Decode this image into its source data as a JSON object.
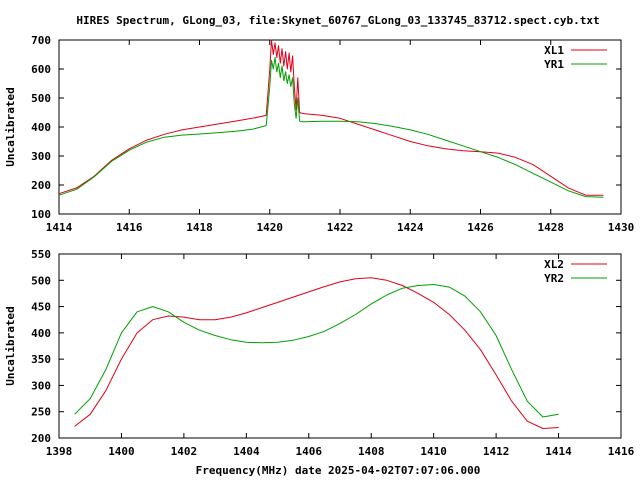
{
  "chart_data": [
    {
      "type": "line",
      "title": "HIRES Spectrum, GLong_03, file:Skynet_60767_GLong_03_133745_83712.spect.cyb.txt",
      "xlabel": "",
      "ylabel": "Uncalibrated",
      "xlim": [
        1414,
        1430
      ],
      "ylim": [
        100,
        700
      ],
      "xticks": [
        "1414",
        "1416",
        "1418",
        "1420",
        "1422",
        "1424",
        "1426",
        "1428",
        "1430"
      ],
      "yticks": [
        "100",
        "200",
        "300",
        "400",
        "500",
        "600",
        "700"
      ],
      "legend_position": "top-right",
      "grid": false,
      "series": [
        {
          "name": "XL1",
          "color": "#e0001b",
          "x": [
            1414.0,
            1414.5,
            1415.0,
            1415.5,
            1416.0,
            1416.5,
            1417.0,
            1417.5,
            1418.0,
            1418.5,
            1419.0,
            1419.5,
            1419.9,
            1420.0,
            1420.05,
            1420.1,
            1420.15,
            1420.2,
            1420.25,
            1420.3,
            1420.35,
            1420.4,
            1420.45,
            1420.5,
            1420.55,
            1420.6,
            1420.65,
            1420.7,
            1420.75,
            1420.8,
            1420.85,
            1420.9,
            1421.0,
            1421.5,
            1422.0,
            1422.5,
            1423.0,
            1423.5,
            1424.0,
            1424.5,
            1425.0,
            1425.5,
            1426.0,
            1426.5,
            1427.0,
            1427.5,
            1428.0,
            1428.5,
            1429.0,
            1429.5
          ],
          "y": [
            170,
            190,
            230,
            285,
            325,
            355,
            375,
            390,
            400,
            410,
            420,
            430,
            440,
            600,
            700,
            650,
            690,
            640,
            680,
            620,
            670,
            610,
            660,
            600,
            655,
            590,
            645,
            540,
            460,
            570,
            450,
            448,
            446,
            440,
            430,
            410,
            390,
            370,
            350,
            335,
            325,
            318,
            315,
            310,
            295,
            270,
            230,
            190,
            165,
            165
          ]
        },
        {
          "name": "YR1",
          "color": "#00a000",
          "x": [
            1414.0,
            1414.5,
            1415.0,
            1415.5,
            1416.0,
            1416.5,
            1417.0,
            1417.5,
            1418.0,
            1418.5,
            1419.0,
            1419.5,
            1419.9,
            1420.0,
            1420.05,
            1420.1,
            1420.15,
            1420.2,
            1420.25,
            1420.3,
            1420.35,
            1420.4,
            1420.45,
            1420.5,
            1420.55,
            1420.6,
            1420.65,
            1420.7,
            1420.75,
            1420.8,
            1420.85,
            1420.9,
            1421.0,
            1421.5,
            1422.0,
            1422.5,
            1423.0,
            1423.5,
            1424.0,
            1424.5,
            1425.0,
            1425.5,
            1426.0,
            1426.5,
            1427.0,
            1427.5,
            1428.0,
            1428.5,
            1429.0,
            1429.5
          ],
          "y": [
            165,
            185,
            228,
            282,
            320,
            348,
            365,
            372,
            376,
            380,
            385,
            392,
            405,
            540,
            630,
            600,
            640,
            590,
            620,
            570,
            610,
            560,
            590,
            550,
            580,
            540,
            570,
            480,
            430,
            500,
            420,
            418,
            418,
            420,
            420,
            418,
            412,
            402,
            390,
            375,
            355,
            335,
            315,
            295,
            270,
            240,
            210,
            180,
            160,
            158
          ]
        }
      ]
    },
    {
      "type": "line",
      "title": "",
      "xlabel": "Frequency(MHz) date 2025-04-02T07:07:06.000",
      "ylabel": "Uncalibrated",
      "xlim": [
        1398,
        1416
      ],
      "ylim": [
        200,
        550
      ],
      "xticks": [
        "1398",
        "1400",
        "1402",
        "1404",
        "1406",
        "1408",
        "1410",
        "1412",
        "1414",
        "1416"
      ],
      "yticks": [
        "200",
        "250",
        "300",
        "350",
        "400",
        "450",
        "500",
        "550"
      ],
      "legend_position": "top-right",
      "grid": false,
      "series": [
        {
          "name": "XL2",
          "color": "#e0001b",
          "x": [
            1398.5,
            1399.0,
            1399.5,
            1400.0,
            1400.5,
            1401.0,
            1401.5,
            1402.0,
            1402.5,
            1403.0,
            1403.5,
            1404.0,
            1404.5,
            1405.0,
            1405.5,
            1406.0,
            1406.5,
            1407.0,
            1407.5,
            1408.0,
            1408.5,
            1409.0,
            1409.5,
            1410.0,
            1410.5,
            1411.0,
            1411.5,
            1412.0,
            1412.5,
            1413.0,
            1413.5,
            1414.0
          ],
          "y": [
            222,
            245,
            290,
            350,
            400,
            425,
            432,
            430,
            425,
            425,
            430,
            438,
            448,
            458,
            468,
            478,
            488,
            497,
            503,
            505,
            500,
            490,
            475,
            458,
            435,
            405,
            368,
            320,
            270,
            232,
            218,
            220
          ]
        },
        {
          "name": "YR2",
          "color": "#00a000",
          "x": [
            1398.5,
            1399.0,
            1399.5,
            1400.0,
            1400.5,
            1401.0,
            1401.5,
            1402.0,
            1402.5,
            1403.0,
            1403.5,
            1404.0,
            1404.5,
            1405.0,
            1405.5,
            1406.0,
            1406.5,
            1407.0,
            1407.5,
            1408.0,
            1408.5,
            1409.0,
            1409.5,
            1410.0,
            1410.5,
            1411.0,
            1411.5,
            1412.0,
            1412.5,
            1413.0,
            1413.5,
            1414.0
          ],
          "y": [
            245,
            275,
            330,
            400,
            440,
            450,
            440,
            420,
            405,
            395,
            387,
            382,
            381,
            382,
            386,
            393,
            403,
            418,
            435,
            455,
            472,
            485,
            490,
            492,
            487,
            470,
            440,
            395,
            330,
            270,
            240,
            245
          ]
        }
      ]
    }
  ]
}
